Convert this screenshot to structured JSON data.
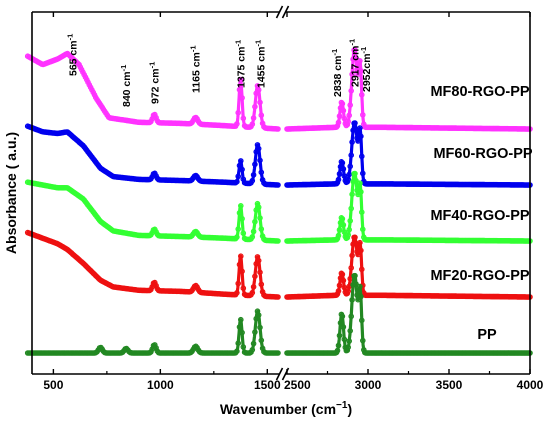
{
  "chart_data": {
    "type": "line",
    "xlabel": "Wavenumber (cm",
    "xlabel_sup": "−1",
    "xlabel_tail": ")",
    "ylabel": "Absorbance ( a.u.)",
    "x_axis": {
      "segments": [
        {
          "xlim": [
            400,
            1550
          ],
          "ticks": [
            500,
            1000,
            1500
          ],
          "tick_labels": [
            "500",
            "1000",
            "1500"
          ]
        },
        {
          "xlim": [
            2500,
            4000
          ],
          "ticks": [
            2500,
            3000,
            3500,
            4000
          ],
          "tick_labels": [
            "2500",
            "3000",
            "3500",
            "4000"
          ]
        }
      ],
      "axis_break": true
    },
    "y_ticks_shown": false,
    "grid": false,
    "legend": "labels printed beside each trace",
    "peak_annotations": [
      {
        "label": "565 cm",
        "sup": "-1",
        "x": 565
      },
      {
        "label": "840 cm",
        "sup": "-1",
        "x": 840
      },
      {
        "label": "972 cm",
        "sup": "-1",
        "x": 972
      },
      {
        "label": "1165 cm",
        "sup": "-1",
        "x": 1165
      },
      {
        "label": "1375 cm",
        "sup": "-1",
        "x": 1375
      },
      {
        "label": "1455 cm",
        "sup": "-1",
        "x": 1455
      },
      {
        "label": "2838 cm",
        "sup": "-1",
        "x": 2838
      },
      {
        "label": "2917 cm",
        "sup": "-1",
        "x": 2917
      },
      {
        "label": "2952cm",
        "sup": "-1",
        "x": 2952
      }
    ],
    "series": [
      {
        "name": "MF80-RGO-PP",
        "color": "#ff33ff",
        "offset": 4.0,
        "baseline": [
          [
            380,
            1.3
          ],
          [
            450,
            1.15
          ],
          [
            520,
            1.25
          ],
          [
            565,
            1.35
          ],
          [
            620,
            1.15
          ],
          [
            700,
            0.55
          ],
          [
            760,
            0.2
          ],
          [
            900,
            0.12
          ],
          [
            1100,
            0.1
          ],
          [
            1300,
            0.06
          ],
          [
            1550,
            0.0
          ],
          [
            2500,
            0.0
          ],
          [
            2800,
            0.03
          ],
          [
            3100,
            0.03
          ],
          [
            4000,
            0.0
          ]
        ],
        "peaks": [
          [
            972,
            0.15,
            8
          ],
          [
            1165,
            0.12,
            10
          ],
          [
            1375,
            0.85,
            7
          ],
          [
            1455,
            0.75,
            11
          ],
          [
            2838,
            0.45,
            11
          ],
          [
            2917,
            1.4,
            17
          ],
          [
            2952,
            1.0,
            9
          ]
        ]
      },
      {
        "name": "MF60-RGO-PP",
        "color": "#0000ee",
        "offset": 3.0,
        "baseline": [
          [
            380,
            1.05
          ],
          [
            450,
            0.95
          ],
          [
            520,
            0.92
          ],
          [
            565,
            0.95
          ],
          [
            640,
            0.7
          ],
          [
            720,
            0.3
          ],
          [
            780,
            0.15
          ],
          [
            900,
            0.1
          ],
          [
            1100,
            0.08
          ],
          [
            1300,
            0.05
          ],
          [
            1550,
            0.0
          ],
          [
            2500,
            0.0
          ],
          [
            2800,
            0.02
          ],
          [
            3100,
            0.02
          ],
          [
            4000,
            0.0
          ]
        ],
        "peaks": [
          [
            972,
            0.12,
            8
          ],
          [
            1165,
            0.1,
            10
          ],
          [
            1375,
            0.4,
            7
          ],
          [
            1455,
            0.7,
            11
          ],
          [
            2838,
            0.4,
            11
          ],
          [
            2917,
            1.1,
            17
          ],
          [
            2952,
            0.85,
            9
          ]
        ]
      },
      {
        "name": "MF40-RGO-PP",
        "color": "#33ff33",
        "offset": 2.0,
        "baseline": [
          [
            380,
            1.05
          ],
          [
            450,
            1.0
          ],
          [
            520,
            0.95
          ],
          [
            565,
            0.95
          ],
          [
            640,
            0.75
          ],
          [
            720,
            0.35
          ],
          [
            780,
            0.18
          ],
          [
            900,
            0.1
          ],
          [
            1100,
            0.08
          ],
          [
            1300,
            0.05
          ],
          [
            1550,
            0.0
          ],
          [
            2500,
            0.0
          ],
          [
            2800,
            0.02
          ],
          [
            3100,
            0.02
          ],
          [
            4000,
            0.0
          ]
        ],
        "peaks": [
          [
            972,
            0.12,
            8
          ],
          [
            1165,
            0.1,
            10
          ],
          [
            1375,
            0.6,
            7
          ],
          [
            1455,
            0.65,
            11
          ],
          [
            2838,
            0.4,
            11
          ],
          [
            2917,
            1.2,
            17
          ],
          [
            2952,
            0.85,
            9
          ]
        ]
      },
      {
        "name": "MF20-RGO-PP",
        "color": "#ee1111",
        "offset": 1.0,
        "baseline": [
          [
            380,
            1.15
          ],
          [
            450,
            1.05
          ],
          [
            520,
            0.95
          ],
          [
            565,
            0.85
          ],
          [
            640,
            0.6
          ],
          [
            720,
            0.3
          ],
          [
            780,
            0.18
          ],
          [
            900,
            0.12
          ],
          [
            1100,
            0.1
          ],
          [
            1300,
            0.05
          ],
          [
            1550,
            0.0
          ],
          [
            2500,
            0.0
          ],
          [
            2800,
            0.03
          ],
          [
            3100,
            0.03
          ],
          [
            4000,
            0.0
          ]
        ],
        "peaks": [
          [
            972,
            0.15,
            8
          ],
          [
            1165,
            0.12,
            10
          ],
          [
            1375,
            0.7,
            7
          ],
          [
            1455,
            0.7,
            11
          ],
          [
            2838,
            0.4,
            11
          ],
          [
            2917,
            1.05,
            17
          ],
          [
            2952,
            0.8,
            9
          ]
        ]
      },
      {
        "name": "PP",
        "color": "#228822",
        "offset": 0.0,
        "baseline": [
          [
            380,
            0.0
          ],
          [
            1550,
            0.0
          ],
          [
            2500,
            0.0
          ],
          [
            4000,
            0.0
          ]
        ],
        "peaks": [
          [
            720,
            0.1,
            9
          ],
          [
            840,
            0.08,
            9
          ],
          [
            972,
            0.15,
            8
          ],
          [
            1165,
            0.12,
            10
          ],
          [
            1375,
            0.6,
            7
          ],
          [
            1455,
            0.75,
            11
          ],
          [
            2838,
            0.7,
            11
          ],
          [
            2917,
            1.4,
            17
          ],
          [
            2952,
            1.0,
            9
          ]
        ]
      }
    ]
  }
}
